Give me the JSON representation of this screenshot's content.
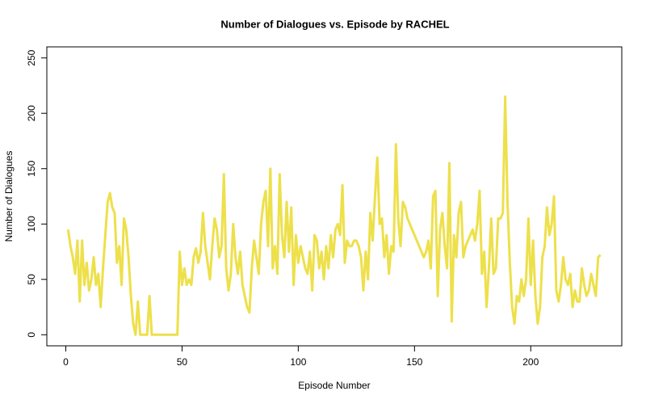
{
  "chart_data": {
    "type": "line",
    "title": "Number of Dialogues vs. Episode by RACHEL",
    "x_label": "Episode Number",
    "y_label": "Number of Dialogues",
    "x": [
      1,
      2,
      3,
      4,
      5,
      6,
      7,
      8,
      9,
      10,
      11,
      12,
      13,
      14,
      15,
      16,
      17,
      18,
      19,
      20,
      21,
      22,
      23,
      24,
      25,
      26,
      27,
      28,
      29,
      30,
      31,
      32,
      33,
      34,
      35,
      36,
      37,
      38,
      39,
      40,
      41,
      42,
      43,
      44,
      45,
      46,
      47,
      48,
      49,
      50,
      51,
      52,
      53,
      54,
      55,
      56,
      57,
      58,
      59,
      60,
      61,
      62,
      63,
      64,
      65,
      66,
      67,
      68,
      69,
      70,
      71,
      72,
      73,
      74,
      75,
      76,
      77,
      78,
      79,
      80,
      81,
      82,
      83,
      84,
      85,
      86,
      87,
      88,
      89,
      90,
      91,
      92,
      93,
      94,
      95,
      96,
      97,
      98,
      99,
      100,
      101,
      102,
      103,
      104,
      105,
      106,
      107,
      108,
      109,
      110,
      111,
      112,
      113,
      114,
      115,
      116,
      117,
      118,
      119,
      120,
      121,
      122,
      123,
      124,
      125,
      126,
      127,
      128,
      129,
      130,
      131,
      132,
      133,
      134,
      135,
      136,
      137,
      138,
      139,
      140,
      141,
      142,
      143,
      144,
      145,
      146,
      147,
      148,
      149,
      150,
      151,
      152,
      153,
      154,
      155,
      156,
      157,
      158,
      159,
      160,
      161,
      162,
      163,
      164,
      165,
      166,
      167,
      168,
      169,
      170,
      171,
      172,
      173,
      174,
      175,
      176,
      177,
      178,
      179,
      180,
      181,
      182,
      183,
      184,
      185,
      186,
      187,
      188,
      189,
      190,
      191,
      192,
      193,
      194,
      195,
      196,
      197,
      198,
      199,
      200,
      201,
      202,
      203,
      204,
      205,
      206,
      207,
      208,
      209,
      210,
      211,
      212,
      213,
      214,
      215,
      216,
      217,
      218,
      219,
      220,
      221,
      222,
      223,
      224,
      225,
      226,
      227,
      228,
      229,
      230
    ],
    "values": [
      95,
      80,
      70,
      55,
      85,
      30,
      85,
      45,
      65,
      40,
      50,
      70,
      45,
      55,
      25,
      60,
      90,
      120,
      128,
      115,
      110,
      65,
      80,
      45,
      105,
      95,
      70,
      35,
      10,
      0,
      30,
      0,
      0,
      0,
      0,
      35,
      0,
      0,
      0,
      0,
      0,
      0,
      0,
      0,
      0,
      0,
      0,
      0,
      75,
      45,
      60,
      45,
      50,
      45,
      70,
      78,
      65,
      75,
      110,
      80,
      65,
      50,
      80,
      105,
      95,
      70,
      80,
      145,
      60,
      40,
      55,
      100,
      70,
      55,
      75,
      45,
      35,
      25,
      20,
      60,
      85,
      70,
      55,
      100,
      120,
      130,
      80,
      150,
      60,
      80,
      55,
      145,
      90,
      70,
      120,
      75,
      115,
      45,
      90,
      65,
      80,
      70,
      60,
      55,
      75,
      40,
      90,
      85,
      60,
      75,
      50,
      80,
      60,
      90,
      70,
      95,
      100,
      90,
      135,
      65,
      85,
      80,
      80,
      85,
      85,
      80,
      70,
      40,
      75,
      50,
      110,
      85,
      125,
      160,
      100,
      105,
      70,
      90,
      55,
      80,
      75,
      172,
      105,
      80,
      120,
      115,
      105,
      100,
      95,
      90,
      85,
      80,
      75,
      70,
      75,
      85,
      60,
      125,
      130,
      35,
      95,
      110,
      80,
      60,
      155,
      12,
      90,
      70,
      110,
      120,
      70,
      80,
      85,
      90,
      95,
      85,
      100,
      130,
      55,
      75,
      25,
      60,
      105,
      55,
      60,
      105,
      105,
      110,
      215,
      120,
      65,
      25,
      10,
      35,
      30,
      50,
      35,
      50,
      105,
      45,
      85,
      35,
      10,
      25,
      70,
      80,
      115,
      90,
      100,
      125,
      40,
      30,
      45,
      70,
      50,
      45,
      55,
      25,
      40,
      30,
      30,
      60,
      45,
      35,
      40,
      55,
      45,
      35,
      70,
      72
    ],
    "color": "#ede04a",
    "xlim": [
      -8.16,
      239.16
    ],
    "xticks": [
      0,
      50,
      100,
      150,
      200
    ],
    "ylim": [
      -10,
      260
    ],
    "yticks": [
      0,
      50,
      100,
      150,
      200,
      250
    ]
  }
}
